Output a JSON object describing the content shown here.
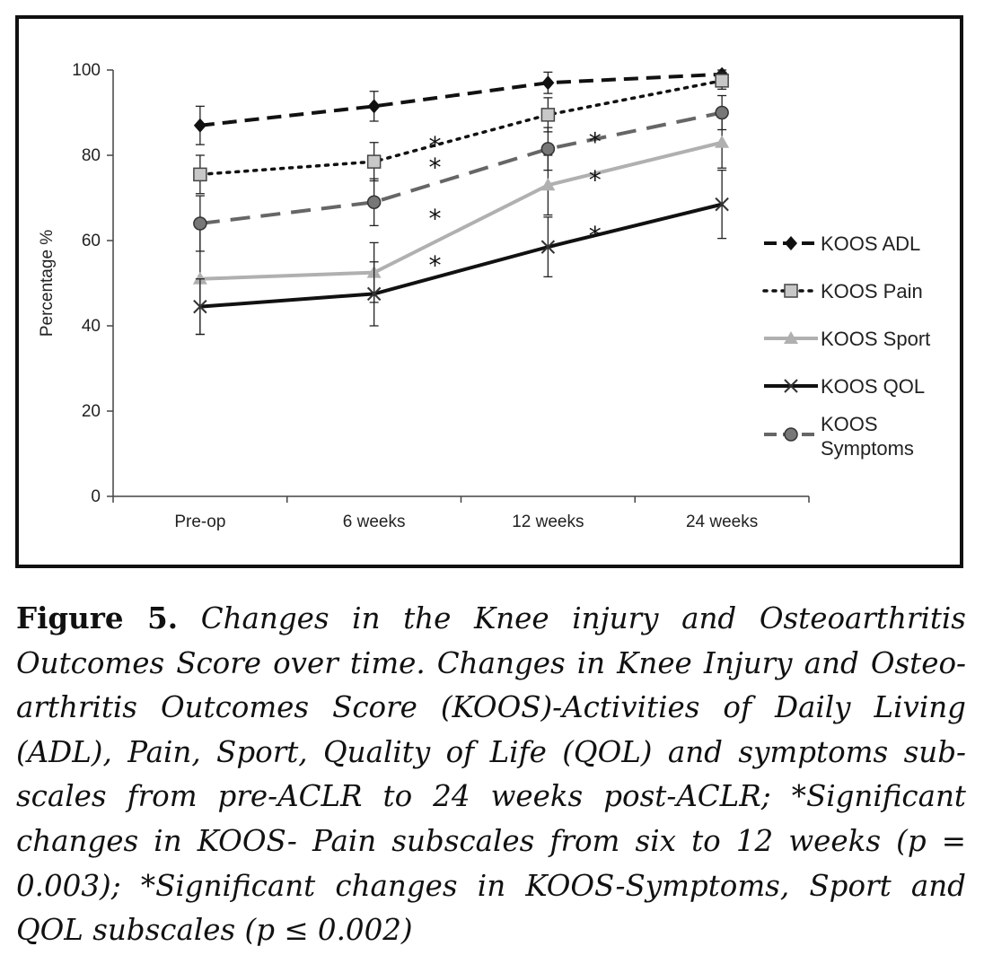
{
  "chart_data": {
    "type": "line",
    "title": "",
    "xlabel": "",
    "ylabel": "Percentage %",
    "categories": [
      "Pre-op",
      "6 weeks",
      "12 weeks",
      "24 weeks"
    ],
    "ylim": [
      0,
      100
    ],
    "yticks": [
      0,
      20,
      40,
      60,
      80,
      100
    ],
    "grid": false,
    "legend_position": "right",
    "series": [
      {
        "name": "KOOS ADL",
        "values": [
          87,
          91.5,
          97,
          99
        ],
        "err": [
          4.5,
          3.5,
          2.5,
          1
        ],
        "color": "#111111",
        "dash": "dash",
        "marker": "diamond"
      },
      {
        "name": "KOOS Pain",
        "values": [
          75.5,
          78.5,
          89.5,
          97.5
        ],
        "err": [
          4.5,
          4.5,
          4,
          2
        ],
        "color": "#111111",
        "dash": "dot",
        "marker": "square"
      },
      {
        "name": "KOOS Sport",
        "values": [
          51,
          52.5,
          73,
          83
        ],
        "err": [
          13,
          7,
          7,
          6
        ],
        "color": "#b0b0b0",
        "dash": "solid",
        "marker": "triangle"
      },
      {
        "name": "KOOS QOL",
        "values": [
          44.5,
          47.5,
          58.5,
          68.5
        ],
        "err": [
          6.5,
          7.5,
          7,
          8
        ],
        "color": "#111111",
        "dash": "solid",
        "marker": "x"
      },
      {
        "name": "KOOS Symptoms",
        "values": [
          64,
          69,
          81.5,
          90
        ],
        "err": [
          6.5,
          5.5,
          5,
          4
        ],
        "color": "#666666",
        "dash": "longdash",
        "marker": "circle"
      }
    ],
    "annotations": [
      {
        "text": "*",
        "x": 1.35,
        "y": 84
      },
      {
        "text": "*",
        "x": 1.35,
        "y": 79
      },
      {
        "text": "*",
        "x": 1.35,
        "y": 67
      },
      {
        "text": "*",
        "x": 1.35,
        "y": 56
      },
      {
        "text": "*",
        "x": 2.27,
        "y": 85
      },
      {
        "text": "*",
        "x": 2.27,
        "y": 76
      },
      {
        "text": "*",
        "x": 2.27,
        "y": 63
      }
    ]
  },
  "caption": {
    "label": "Figure 5.",
    "text": "Changes in the Knee injury and Osteoarthritis Outcomes Score over time. Changes in Knee Injury and Osteo­arthritis Outcomes Score (KOOS)-Activities of Daily Living (ADL), Pain, Sport, Quality of Life (QOL) and symptoms sub­scales from pre-ACLR to 24 weeks post-ACLR; *Significant changes in KOOS- Pain subscales from six to 12 weeks (p = 0.003); *Significant changes in KOOS-Symptoms, Sport and QOL subscales (p ≤ 0.002)"
  }
}
